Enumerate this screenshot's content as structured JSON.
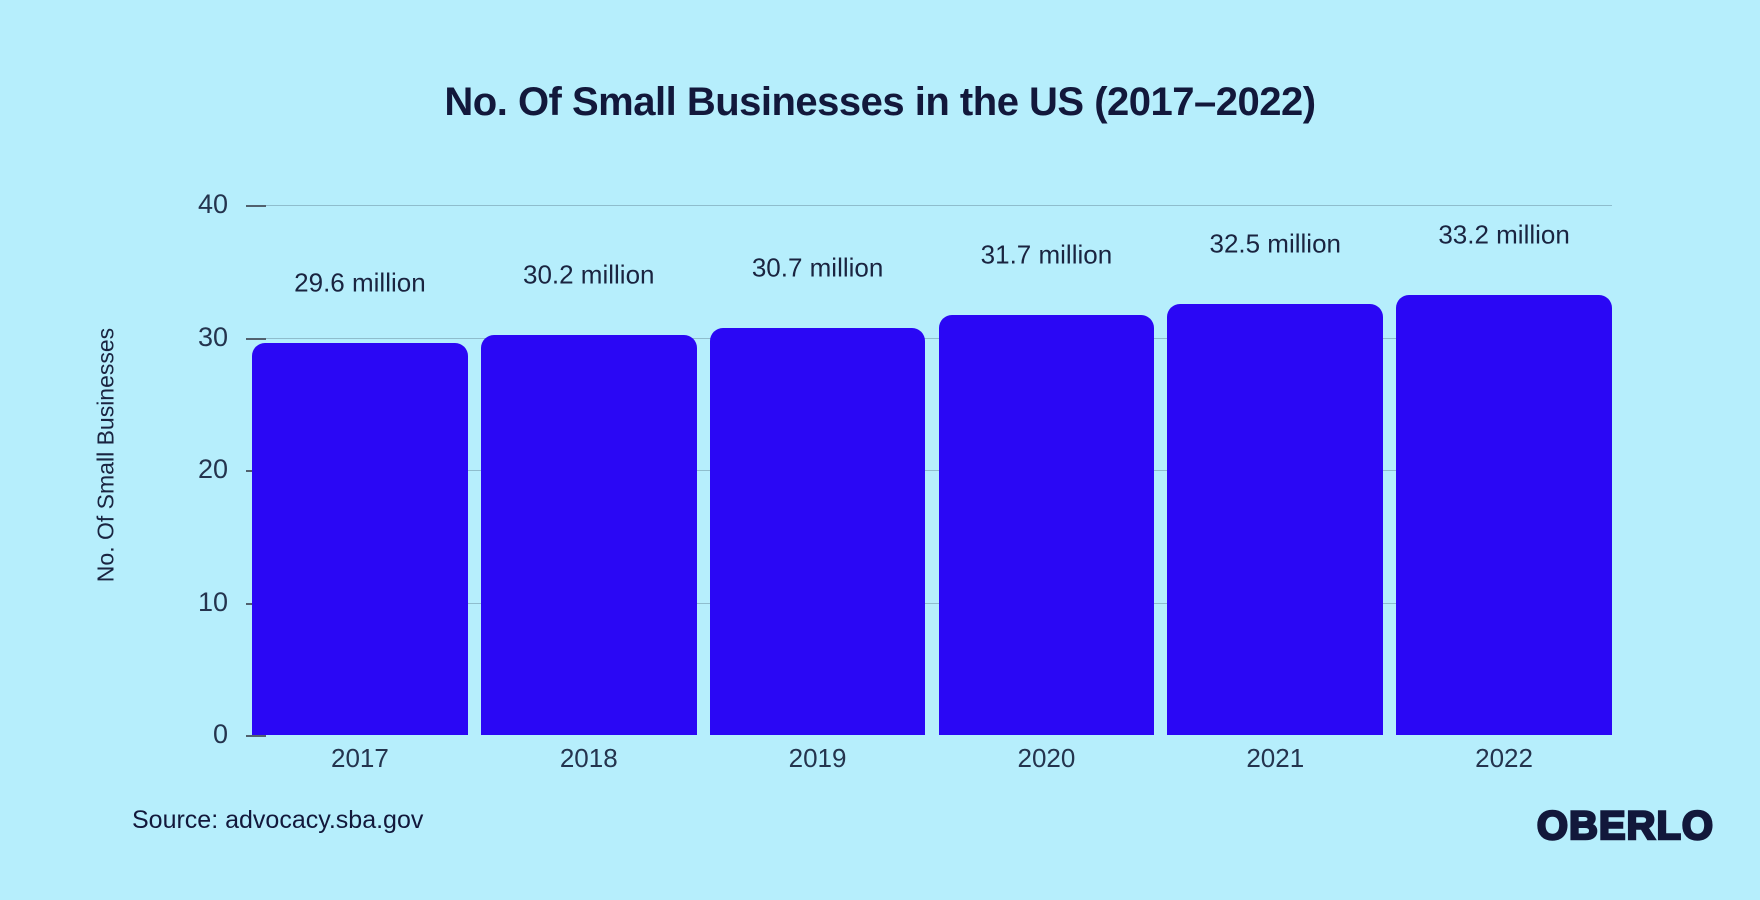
{
  "page": {
    "background_color": "#B6EEFC",
    "source_text": "Source: advocacy.sba.gov",
    "logo_text": "OBERLO"
  },
  "chart_data": {
    "type": "bar",
    "title": "No. Of Small Businesses in the US (2017–2022)",
    "xlabel": "",
    "ylabel": "No. Of Small Businesses",
    "categories": [
      "2017",
      "2018",
      "2019",
      "2020",
      "2021",
      "2022"
    ],
    "values": [
      29.6,
      30.2,
      30.7,
      31.7,
      32.5,
      33.2
    ],
    "value_labels": [
      "29.6 million",
      "30.2 million",
      "30.7 million",
      "31.7 million",
      "32.5 million",
      "33.2 million"
    ],
    "unit": "million",
    "yticks": [
      0,
      10,
      20,
      30,
      40
    ],
    "ylim": [
      0,
      40
    ],
    "grid": "horizontal",
    "legend": "none",
    "bar_color": "#2A07F5",
    "background_color": "#B6EEFC",
    "text_color": "#12183B"
  }
}
